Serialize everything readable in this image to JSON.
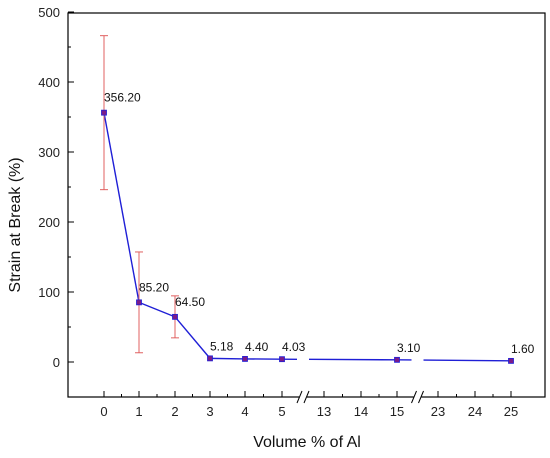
{
  "chart_data": {
    "type": "line",
    "xlabel": "Volume % of Al",
    "ylabel": "Strain at Break (%)",
    "ylim": [
      0,
      500
    ],
    "yticks": [
      0,
      100,
      200,
      300,
      400,
      500
    ],
    "x_ticks": [
      "0",
      "1",
      "2",
      "3",
      "4",
      "5",
      "13",
      "14",
      "15",
      "23",
      "24",
      "25"
    ],
    "axis_breaks": [
      [
        "5",
        "13"
      ],
      [
        "15",
        "23"
      ]
    ],
    "grid": false,
    "series": [
      {
        "x": [
          "0",
          "1",
          "2",
          "3",
          "4",
          "5",
          "15",
          "25"
        ],
        "values": [
          356.2,
          85.2,
          64.5,
          5.18,
          4.4,
          4.03,
          3.1,
          1.6
        ],
        "labels": [
          "356.20",
          "85.20",
          "64.50",
          "5.18",
          "4.40",
          "4.03",
          "3.10",
          "1.60"
        ],
        "error": [
          110,
          72,
          30,
          0,
          0,
          0,
          0,
          0
        ],
        "color": "#1f1fd6",
        "marker_color": "#7a1b8a",
        "error_color": "#e06060"
      }
    ]
  }
}
